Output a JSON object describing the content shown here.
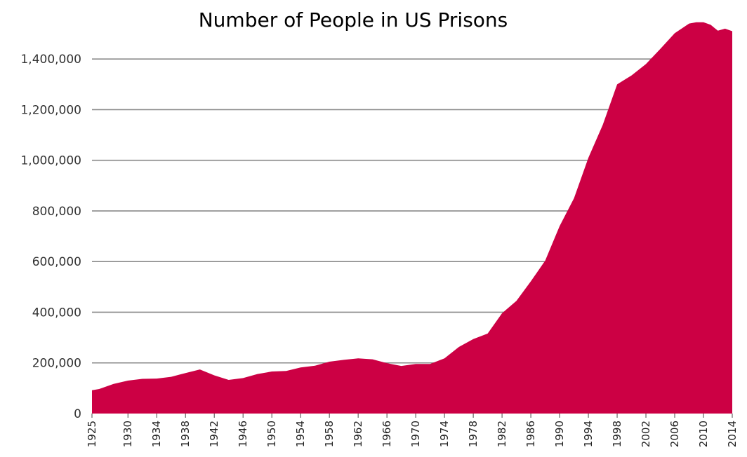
{
  "chart_data": {
    "type": "area",
    "title": "Number of People in US Prisons",
    "xlabel": "",
    "ylabel": "",
    "xlim": [
      1925,
      2014
    ],
    "ylim": [
      0,
      1550000
    ],
    "grid": true,
    "color": "#cc0044",
    "yticks": [
      0,
      200000,
      400000,
      600000,
      800000,
      1000000,
      1200000,
      1400000
    ],
    "ytick_labels": [
      "0",
      "200,000",
      "400,000",
      "600,000",
      "800,000",
      "1,000,000",
      "1,200,000",
      "1,400,000"
    ],
    "xticks": [
      1925,
      1930,
      1934,
      1938,
      1942,
      1946,
      1950,
      1954,
      1958,
      1962,
      1966,
      1970,
      1974,
      1978,
      1982,
      1986,
      1990,
      1994,
      1998,
      2002,
      2006,
      2010,
      2014
    ],
    "xtick_labels": [
      "1925",
      "1930",
      "1934",
      "1938",
      "1942",
      "1946",
      "1950",
      "1954",
      "1958",
      "1962",
      "1966",
      "1970",
      "1974",
      "1978",
      "1982",
      "1986",
      "1990",
      "1994",
      "1998",
      "2002",
      "2006",
      "2010",
      "2014"
    ],
    "series": [
      {
        "x": [
          1925,
          1926,
          1928,
          1930,
          1932,
          1934,
          1936,
          1938,
          1940,
          1942,
          1944,
          1946,
          1948,
          1950,
          1952,
          1954,
          1956,
          1958,
          1960,
          1962,
          1964,
          1966,
          1968,
          1970,
          1972,
          1974,
          1976,
          1978,
          1980,
          1982,
          1984,
          1986,
          1988,
          1990,
          1992,
          1994,
          1996,
          1998,
          2000,
          2002,
          2004,
          2006,
          2008,
          2009,
          2010,
          2011,
          2012,
          2013,
          2014
        ],
        "values": [
          92000,
          97000,
          117000,
          130000,
          137000,
          138000,
          145000,
          160000,
          174000,
          151000,
          133000,
          140000,
          156000,
          166000,
          168000,
          182000,
          189000,
          205000,
          212000,
          218000,
          214000,
          199000,
          188000,
          196000,
          196000,
          218000,
          263000,
          294000,
          316000,
          396000,
          445000,
          522000,
          604000,
          740000,
          850000,
          1010000,
          1140000,
          1300000,
          1335000,
          1380000,
          1440000,
          1502000,
          1540000,
          1545000,
          1545000,
          1535000,
          1512000,
          1520000,
          1510000
        ]
      }
    ]
  }
}
